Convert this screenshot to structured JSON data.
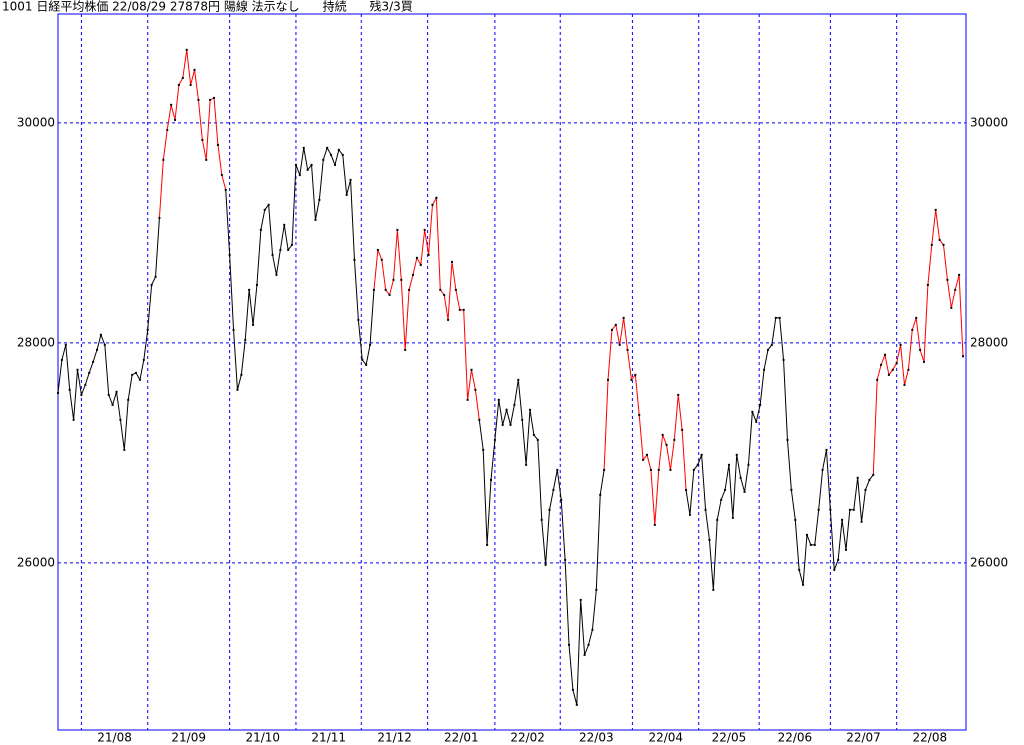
{
  "chart_data": {
    "type": "line",
    "title": "1001 日経平均株価 22/08/29 27878円 陽線 法示なし      持続      残3/3買",
    "series": [
      {
        "color": "#000000",
        "highlight_color": "#ff0000",
        "highlight_ranges": [
          [
            26,
            43
          ],
          [
            81,
            108
          ],
          [
            140,
            161
          ],
          [
            209,
            232
          ]
        ],
        "values": [
          27545,
          27845,
          27982,
          27573,
          27300,
          27755,
          27527,
          27618,
          27727,
          27827,
          27936,
          28073,
          27982,
          27527,
          27436,
          27555,
          27300,
          27027,
          27482,
          27709,
          27727,
          27664,
          27845,
          28118,
          28527,
          28600,
          29136,
          29664,
          29936,
          30164,
          30027,
          30345,
          30409,
          30664,
          30345,
          30482,
          30209,
          29845,
          29664,
          30209,
          30227,
          29800,
          29527,
          29391,
          28800,
          28118,
          27573,
          27709,
          28027,
          28482,
          28164,
          28527,
          29027,
          29209,
          29255,
          28800,
          28618,
          28845,
          29073,
          28845,
          28891,
          29618,
          29527,
          29773,
          29573,
          29618,
          29118,
          29300,
          29664,
          29773,
          29709,
          29618,
          29755,
          29709,
          29345,
          29482,
          28755,
          28209,
          27845,
          27800,
          27982,
          28482,
          28845,
          28755,
          28482,
          28436,
          28573,
          29027,
          28573,
          27936,
          28482,
          28618,
          28773,
          28709,
          29027,
          28800,
          29255,
          29318,
          28482,
          28436,
          28209,
          28736,
          28482,
          28300,
          28300,
          27482,
          27755,
          27573,
          27300,
          27027,
          26163,
          26754,
          27118,
          27482,
          27254,
          27391,
          27254,
          27436,
          27664,
          27300,
          26891,
          27391,
          27163,
          27118,
          26391,
          25982,
          26482,
          26663,
          26845,
          26573,
          26027,
          25254,
          24845,
          24709,
          25663,
          25163,
          25254,
          25391,
          25754,
          26618,
          26845,
          27664,
          28118,
          28164,
          27982,
          28227,
          27936,
          27664,
          27709,
          27345,
          26936,
          26982,
          26845,
          26345,
          26845,
          27163,
          27073,
          26845,
          27118,
          27527,
          27209,
          26663,
          26436,
          26845,
          26891,
          26982,
          26482,
          26209,
          25754,
          26391,
          26573,
          26663,
          26891,
          26409,
          26982,
          26773,
          26645,
          26891,
          27373,
          27282,
          27436,
          27755,
          27936,
          27982,
          28227,
          28227,
          27845,
          27118,
          26663,
          26391,
          25936,
          25800,
          26254,
          26163,
          26163,
          26482,
          26845,
          27027,
          26482,
          25936,
          26027,
          26391,
          26118,
          26482,
          26482,
          26773,
          26373,
          26663,
          26754,
          26800,
          27664,
          27800,
          27891,
          27709,
          27755,
          27818,
          27982,
          27618,
          27755,
          28118,
          28227,
          27936,
          27827,
          28527,
          28891,
          29209,
          28936,
          28891,
          28573,
          28318,
          28482,
          28618,
          27878
        ]
      }
    ],
    "xlim": [
      0,
      232
    ],
    "xgrid": [
      6,
      23,
      44,
      61,
      77.75,
      94.75,
      112,
      128.75,
      147.25,
      164.25,
      179.75,
      198,
      215
    ],
    "xticks": [
      {
        "value": 14.5,
        "label": "21/08"
      },
      {
        "value": 33.5,
        "label": "21/09"
      },
      {
        "value": 52.5,
        "label": "21/10"
      },
      {
        "value": 69.4,
        "label": "21/11"
      },
      {
        "value": 86.3,
        "label": "21/12"
      },
      {
        "value": 103.4,
        "label": "22/01"
      },
      {
        "value": 120.4,
        "label": "22/02"
      },
      {
        "value": 138,
        "label": "22/03"
      },
      {
        "value": 155.8,
        "label": "22/04"
      },
      {
        "value": 172,
        "label": "22/05"
      },
      {
        "value": 188.9,
        "label": "22/06"
      },
      {
        "value": 206.5,
        "label": "22/07"
      },
      {
        "value": 223.5,
        "label": "22/08"
      }
    ],
    "ylim": [
      24480,
      30990
    ],
    "yticks": [
      26000,
      28000,
      30000
    ],
    "grid": true,
    "grid_color": "#0000ff",
    "frame_color": "#0000ff"
  }
}
